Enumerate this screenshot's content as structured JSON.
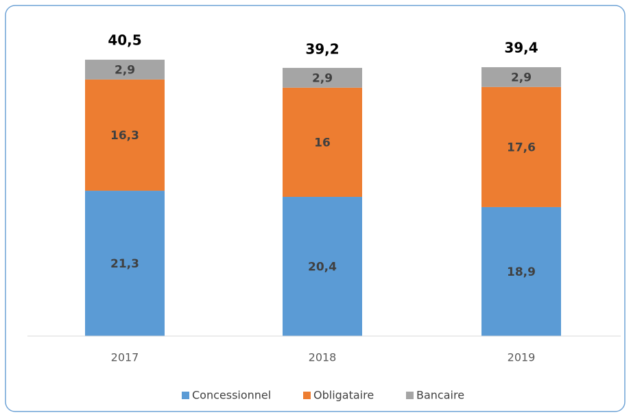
{
  "chart_data": {
    "type": "stacked_bar",
    "categories": [
      "2017",
      "2018",
      "2019"
    ],
    "series": [
      {
        "name": "Concessionnel",
        "color": "#5b9bd5",
        "values": [
          21.3,
          20.4,
          18.9
        ],
        "value_labels": [
          "21,3",
          "20,4",
          "18,9"
        ]
      },
      {
        "name": "Obligataire",
        "color": "#ed7d31",
        "values": [
          16.3,
          16,
          17.6
        ],
        "value_labels": [
          "16,3",
          "16",
          "17,6"
        ]
      },
      {
        "name": "Bancaire",
        "color": "#a5a5a5",
        "values": [
          2.9,
          2.9,
          2.9
        ],
        "value_labels": [
          "2,9",
          "2,9",
          "2,9"
        ]
      }
    ],
    "totals": [
      40.5,
      39.2,
      39.4
    ],
    "total_labels": [
      "40,5",
      "39,2",
      "39,4"
    ],
    "legend": "bottom"
  }
}
